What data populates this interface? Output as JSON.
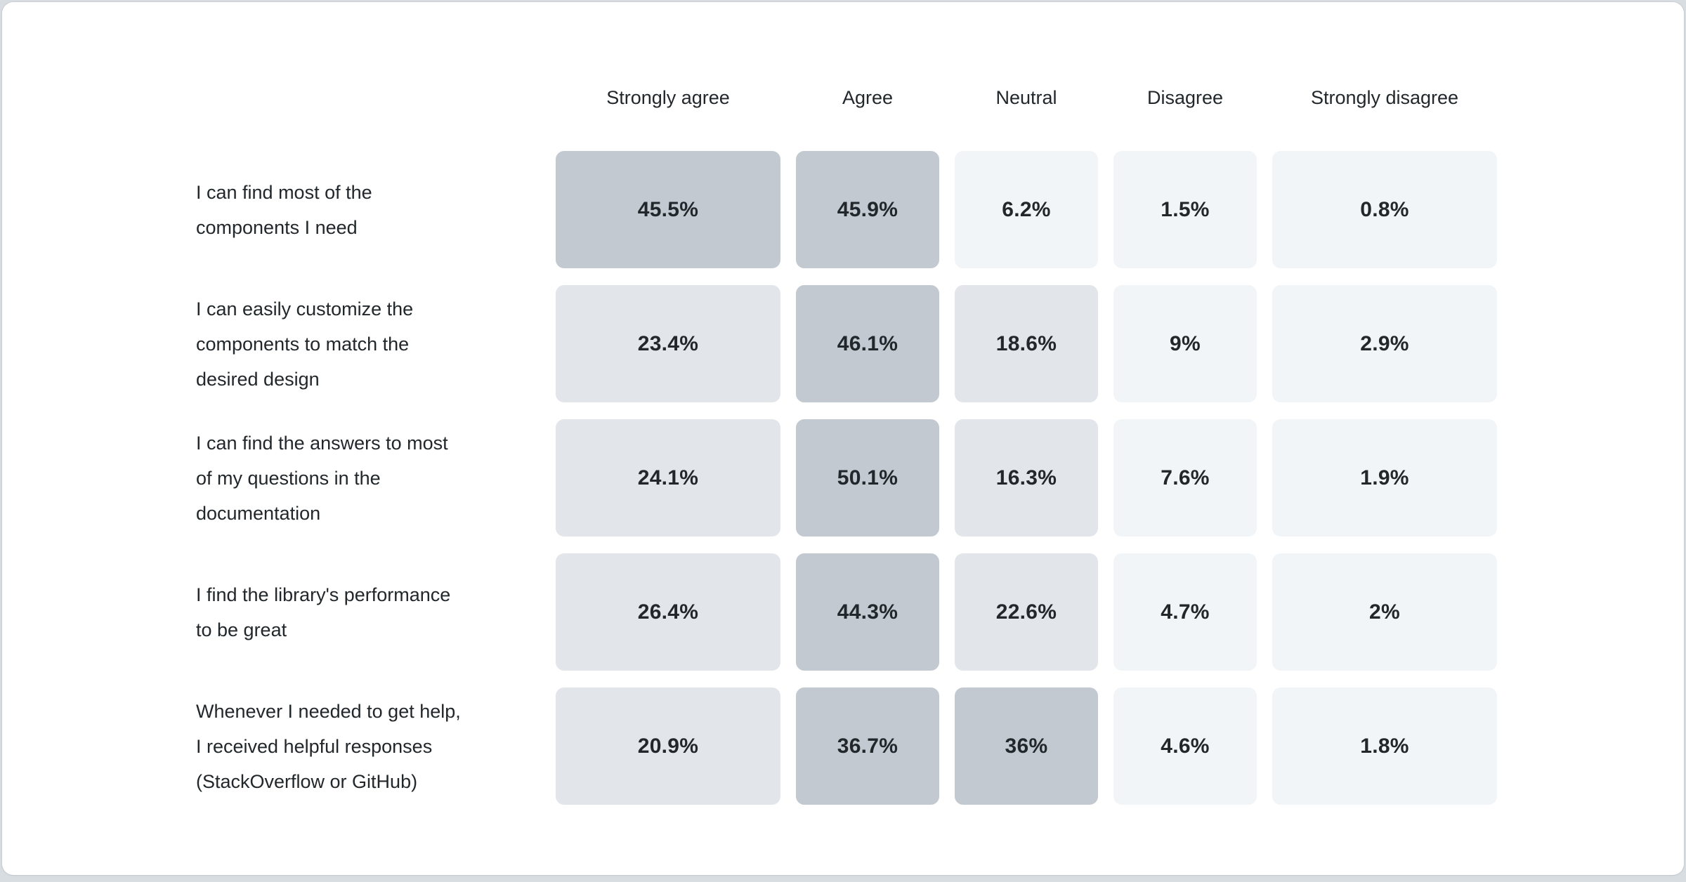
{
  "page": {
    "background_color": "#d8dde1",
    "card_color": "#ffffff"
  },
  "chart_data": {
    "type": "heatmap",
    "title": "",
    "legend": "none",
    "gridlines": false,
    "columns": [
      "Strongly agree",
      "Agree",
      "Neutral",
      "Disagree",
      "Strongly disagree"
    ],
    "rows": [
      {
        "label": "I can find most of the\ncomponents I need",
        "values": [
          45.5,
          45.9,
          6.2,
          1.5,
          0.8
        ],
        "display": [
          "45.5%",
          "45.9%",
          "6.2%",
          "1.5%",
          "0.8%"
        ]
      },
      {
        "label": "I can easily customize the\ncomponents to match the\ndesired design",
        "values": [
          23.4,
          46.1,
          18.6,
          9,
          2.9
        ],
        "display": [
          "23.4%",
          "46.1%",
          "18.6%",
          "9%",
          "2.9%"
        ]
      },
      {
        "label": "I can find the answers to most\nof my questions in the\ndocumentation",
        "values": [
          24.1,
          50.1,
          16.3,
          7.6,
          1.9
        ],
        "display": [
          "24.1%",
          "50.1%",
          "16.3%",
          "7.6%",
          "1.9%"
        ]
      },
      {
        "label": "I find the library's performance\nto be great",
        "values": [
          26.4,
          44.3,
          22.6,
          4.7,
          2
        ],
        "display": [
          "26.4%",
          "44.3%",
          "22.6%",
          "4.7%",
          "2%"
        ]
      },
      {
        "label": "Whenever I needed to get help,\nI received helpful responses\n(StackOverflow or GitHub)",
        "values": [
          20.9,
          36.7,
          36,
          4.6,
          1.8
        ],
        "display": [
          "20.9%",
          "36.7%",
          "36%",
          "4.6%",
          "1.8%"
        ]
      }
    ],
    "color_scale": {
      "buckets": [
        {
          "max": 10,
          "color": "#f2f5f8"
        },
        {
          "max": 30,
          "color": "#e2e5e9"
        },
        {
          "max": 100,
          "color": "#c3c9d0"
        }
      ],
      "value_text_color": "#21272a"
    }
  }
}
